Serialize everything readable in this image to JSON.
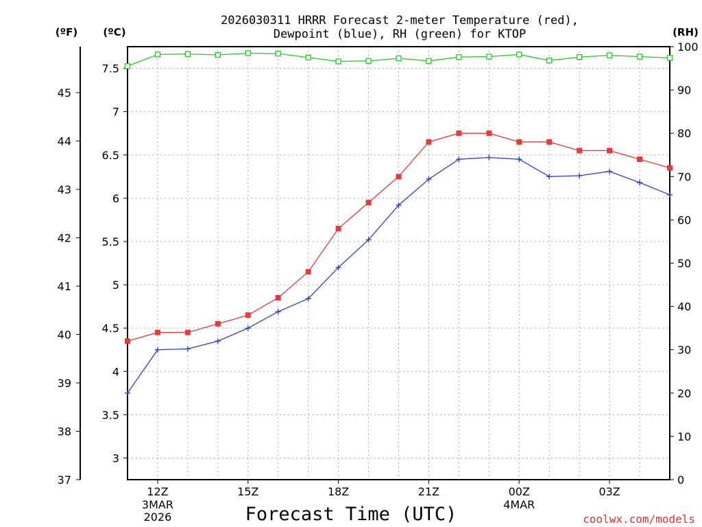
{
  "chart_data": {
    "type": "line",
    "title": [
      "2026030311 HRRR Forecast 2-meter Temperature (red),",
      "Dewpoint (blue), RH (green) for KTOP"
    ],
    "xlabel": "Forecast Time (UTC)",
    "credit": "coolwx.com/models",
    "units": {
      "f": "(ºF)",
      "c": "(ºC)",
      "rh": "(RH)"
    },
    "x_hours": [
      11,
      12,
      13,
      14,
      15,
      16,
      17,
      18,
      19,
      20,
      21,
      22,
      23,
      24,
      25,
      26,
      27,
      28,
      29
    ],
    "xlim": [
      11,
      29
    ],
    "x_ticks": [
      {
        "h": 12,
        "label": "12Z",
        "sub": [
          "3MAR",
          "2026"
        ]
      },
      {
        "h": 15,
        "label": "15Z",
        "sub": []
      },
      {
        "h": 18,
        "label": "18Z",
        "sub": []
      },
      {
        "h": 21,
        "label": "21Z",
        "sub": []
      },
      {
        "h": 24,
        "label": "00Z",
        "sub": [
          "4MAR"
        ]
      },
      {
        "h": 27,
        "label": "03Z",
        "sub": []
      }
    ],
    "y_celsius": {
      "lim": [
        2.75,
        7.75
      ],
      "ticks": [
        "3",
        "3.5",
        "4",
        "4.5",
        "5",
        "5.5",
        "6",
        "6.5",
        "7",
        "7.5"
      ]
    },
    "y_fahrenheit": {
      "lim": [
        37,
        45.95
      ],
      "ticks": [
        "37",
        "38",
        "39",
        "40",
        "41",
        "42",
        "43",
        "44",
        "45"
      ]
    },
    "y_rh": {
      "lim": [
        0,
        100
      ],
      "ticks": [
        "0",
        "10",
        "20",
        "30",
        "40",
        "50",
        "60",
        "70",
        "80",
        "90",
        "100"
      ]
    },
    "series": [
      {
        "name": "Temperature",
        "axis": "c",
        "color": "#e83a3a",
        "marker": "filled-square",
        "values": [
          4.35,
          4.45,
          4.45,
          4.55,
          4.65,
          4.85,
          5.15,
          5.65,
          5.95,
          6.25,
          6.65,
          6.75,
          6.75,
          6.65,
          6.65,
          6.55,
          6.55,
          6.45,
          6.35
        ]
      },
      {
        "name": "Dewpoint",
        "axis": "c",
        "color": "#2b3fe0",
        "marker": "plus",
        "values": [
          3.75,
          4.25,
          4.26,
          4.35,
          4.5,
          4.69,
          4.84,
          5.2,
          5.52,
          5.92,
          6.22,
          6.45,
          6.47,
          6.45,
          6.25,
          6.26,
          6.31,
          6.18,
          6.04
        ]
      },
      {
        "name": "RH",
        "axis": "rh",
        "color": "#22cc22",
        "marker": "open-square",
        "values": [
          95.5,
          98.2,
          98.3,
          98.1,
          98.5,
          98.4,
          97.5,
          96.6,
          96.7,
          97.3,
          96.7,
          97.6,
          97.7,
          98.2,
          96.8,
          97.6,
          98,
          97.7,
          97.4
        ]
      }
    ]
  }
}
